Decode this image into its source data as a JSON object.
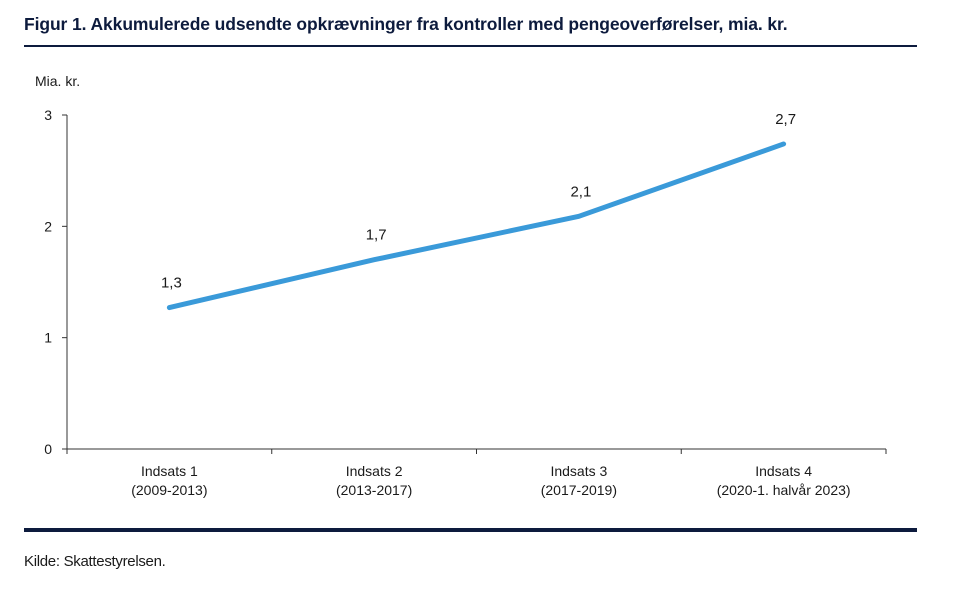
{
  "title": "Figur 1. Akkumulerede udsendte opkrævninger fra kontroller med pengeoverførelser, mia. kr.",
  "source": "Kilde: Skattestyrelsen.",
  "colors": {
    "line": "#3a9ad9",
    "rule": "#0d1b3d",
    "axis": "#333333"
  },
  "chart_data": {
    "type": "line",
    "ylabel": "Mia. kr.",
    "xlabel": "",
    "ylim": [
      0,
      3
    ],
    "yticks": [
      "0",
      "1",
      "2",
      "3"
    ],
    "grid": false,
    "categories": [
      [
        "Indsats 1",
        "(2009-2013)"
      ],
      [
        "Indsats 2",
        "(2013-2017)"
      ],
      [
        "Indsats 3",
        "(2017-2019)"
      ],
      [
        "Indsats 4",
        "(2020-1. halvår 2023)"
      ]
    ],
    "series": [
      {
        "values": [
          1.27,
          1.7,
          2.09,
          2.74
        ],
        "labels": [
          "1,3",
          "1,7",
          "2,1",
          "2,7"
        ]
      }
    ]
  }
}
